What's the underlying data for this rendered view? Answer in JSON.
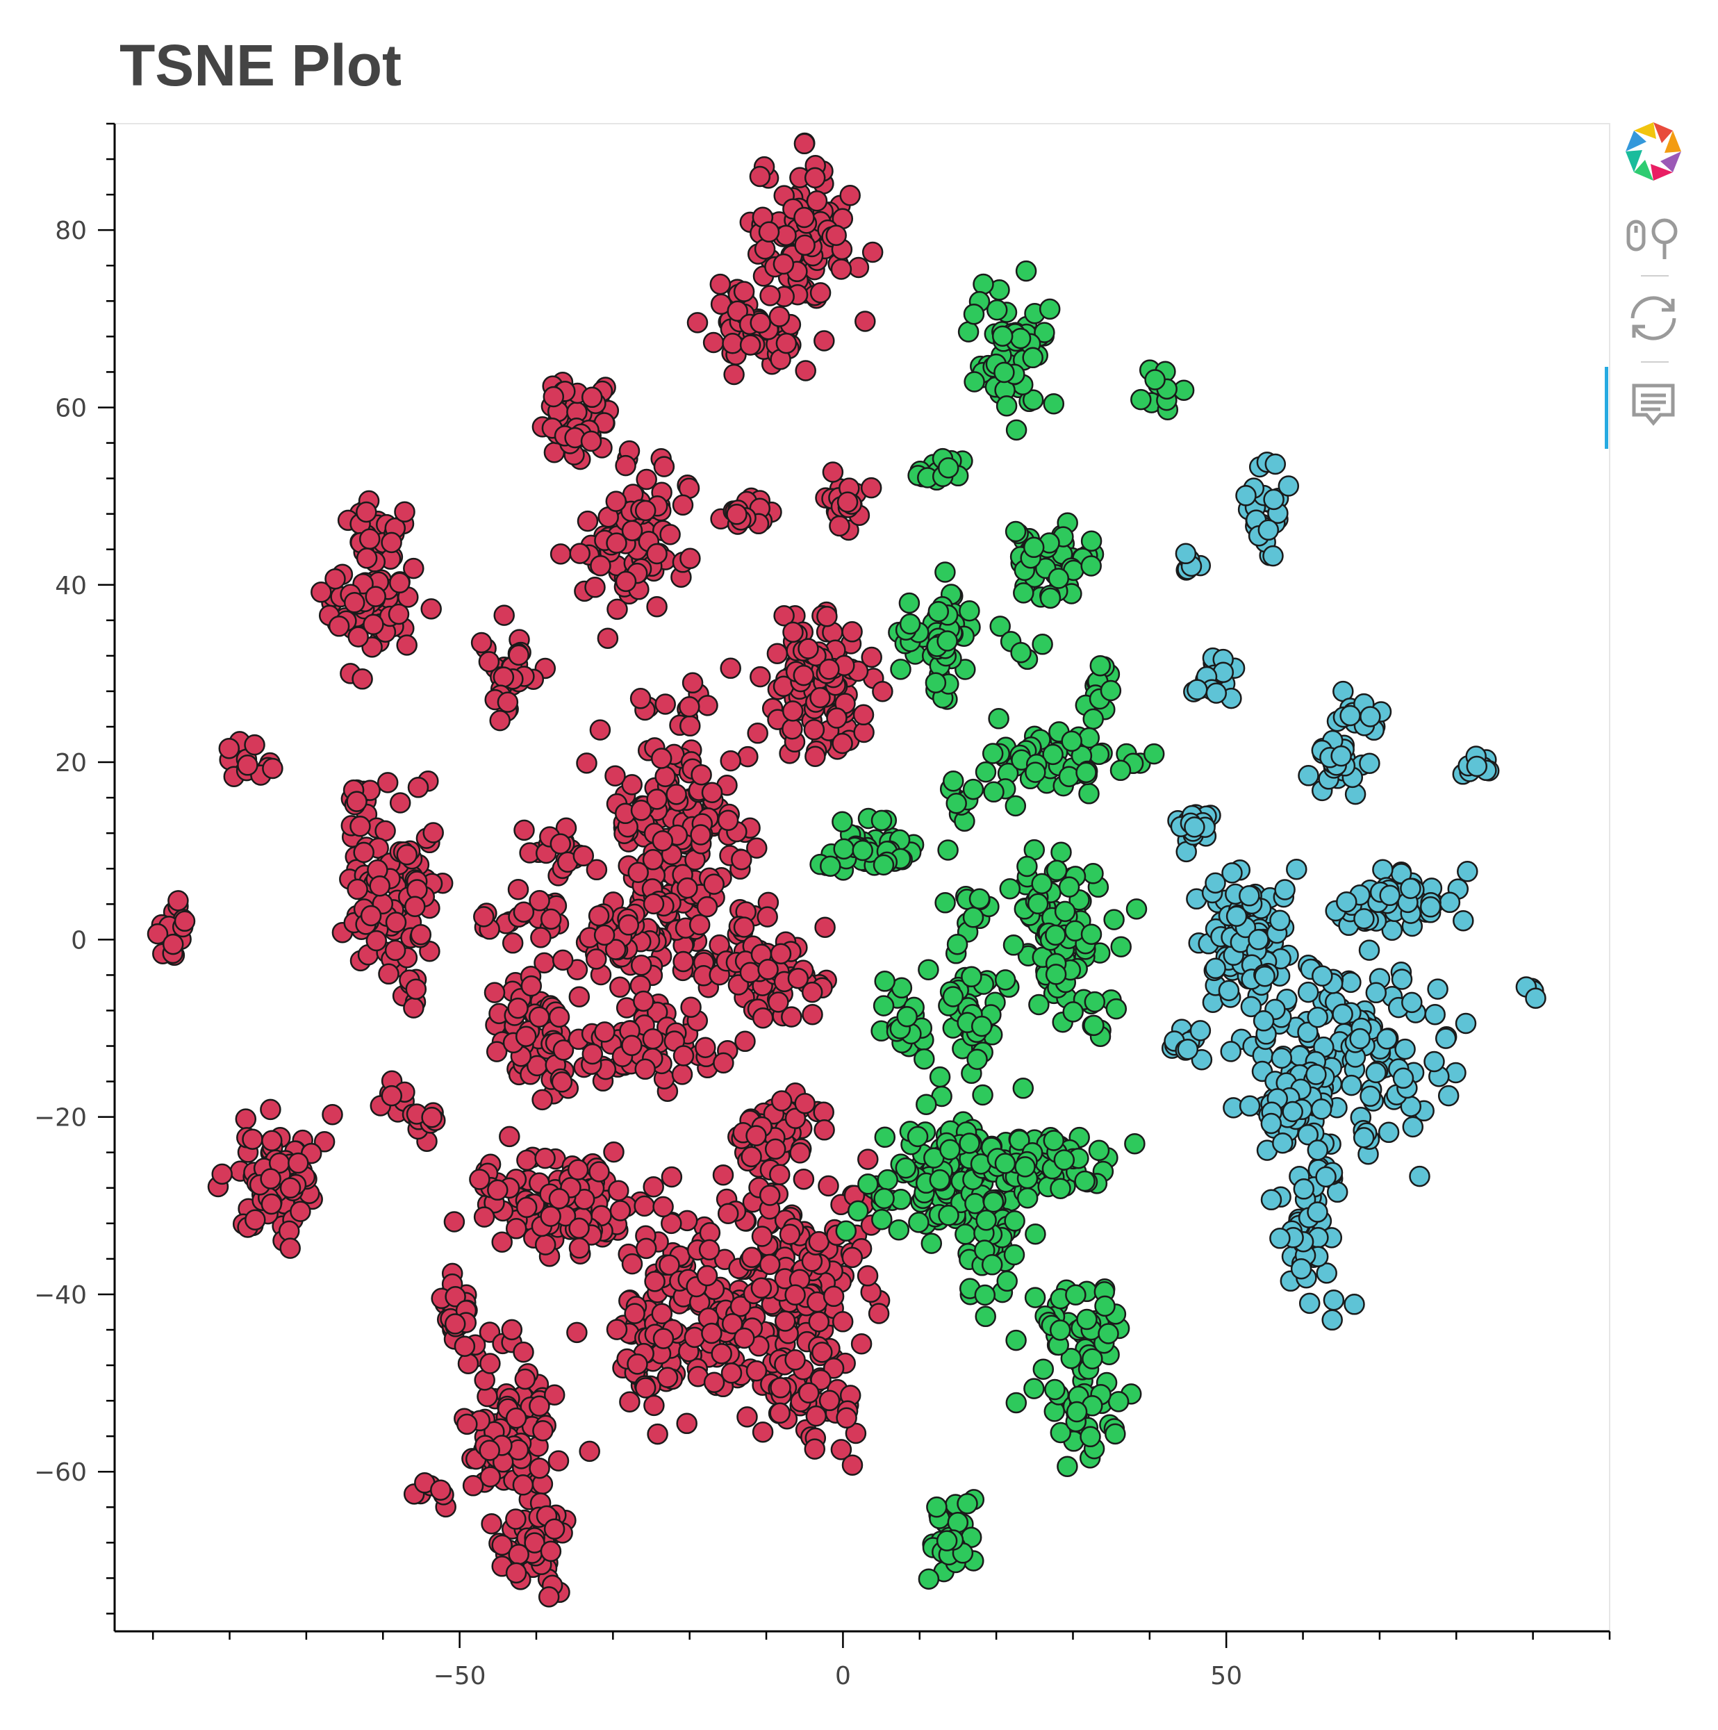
{
  "chart_data": {
    "type": "scatter",
    "title": "TSNE Plot",
    "xlabel": "",
    "ylabel": "",
    "xlim": [
      -95,
      100
    ],
    "ylim": [
      -78,
      92
    ],
    "x_ticks": [
      -50,
      0,
      50
    ],
    "y_ticks": [
      -60,
      -40,
      -20,
      0,
      20,
      40,
      60,
      80
    ],
    "grid": false,
    "legend": "none",
    "series": [
      {
        "color": "#d6395a",
        "clusters": [
          {
            "cx": -5,
            "cy": 79,
            "sx": 3.2,
            "sy": 4,
            "n": 90
          },
          {
            "cx": -11,
            "cy": 69,
            "sx": 3,
            "sy": 2.5,
            "n": 50
          },
          {
            "cx": -34,
            "cy": 59,
            "sx": 2.5,
            "sy": 2.5,
            "n": 50
          },
          {
            "cx": -61,
            "cy": 46,
            "sx": 2,
            "sy": 2,
            "n": 30
          },
          {
            "cx": -62,
            "cy": 38,
            "sx": 2.8,
            "sy": 2.8,
            "n": 60
          },
          {
            "cx": -27,
            "cy": 44,
            "sx": 3.2,
            "sy": 3.5,
            "n": 90
          },
          {
            "cx": -12,
            "cy": 48,
            "sx": 1.5,
            "sy": 1,
            "n": 15
          },
          {
            "cx": 0,
            "cy": 50,
            "sx": 1.5,
            "sy": 1.5,
            "n": 20
          },
          {
            "cx": -43,
            "cy": 31,
            "sx": 2.5,
            "sy": 2,
            "n": 25
          },
          {
            "cx": -45,
            "cy": 27,
            "sx": 1,
            "sy": 1,
            "n": 6
          },
          {
            "cx": -4,
            "cy": 29,
            "sx": 3.5,
            "sy": 4,
            "n": 100
          },
          {
            "cx": -77,
            "cy": 20,
            "sx": 1.5,
            "sy": 1.5,
            "n": 12
          },
          {
            "cx": -63,
            "cy": 16,
            "sx": 1,
            "sy": 1.5,
            "n": 10
          },
          {
            "cx": -59,
            "cy": 5,
            "sx": 3.2,
            "sy": 5,
            "n": 90
          },
          {
            "cx": -21,
            "cy": 11,
            "sx": 4.5,
            "sy": 8,
            "n": 200
          },
          {
            "cx": -37,
            "cy": 10,
            "sx": 2.5,
            "sy": 1.5,
            "n": 20
          },
          {
            "cx": -41,
            "cy": 2,
            "sx": 2.5,
            "sy": 1.5,
            "n": 20
          },
          {
            "cx": -29,
            "cy": 0,
            "sx": 2.5,
            "sy": 2.5,
            "n": 40
          },
          {
            "cx": -87,
            "cy": 1,
            "sx": 1.5,
            "sy": 1.5,
            "n": 15
          },
          {
            "cx": -9,
            "cy": -4,
            "sx": 3,
            "sy": 2.5,
            "n": 60
          },
          {
            "cx": -40,
            "cy": -10,
            "sx": 3,
            "sy": 4,
            "n": 60
          },
          {
            "cx": -24,
            "cy": -12,
            "sx": 5,
            "sy": 2.5,
            "n": 60
          },
          {
            "cx": -56,
            "cy": -6,
            "sx": 0.8,
            "sy": 1.5,
            "n": 6
          },
          {
            "cx": -58,
            "cy": -18,
            "sx": 1,
            "sy": 1,
            "n": 8
          },
          {
            "cx": -54,
            "cy": -20,
            "sx": 1,
            "sy": 1,
            "n": 8
          },
          {
            "cx": -74,
            "cy": -27,
            "sx": 2.5,
            "sy": 3.2,
            "n": 80
          },
          {
            "cx": -9,
            "cy": -22,
            "sx": 2.5,
            "sy": 3,
            "n": 50
          },
          {
            "cx": -36,
            "cy": -30,
            "sx": 4.5,
            "sy": 3,
            "n": 100
          },
          {
            "cx": -45,
            "cy": -27,
            "sx": 1.5,
            "sy": 1,
            "n": 10
          },
          {
            "cx": -20,
            "cy": -43,
            "sx": 5,
            "sy": 5,
            "n": 150
          },
          {
            "cx": -6,
            "cy": -38,
            "sx": 5,
            "sy": 6,
            "n": 150
          },
          {
            "cx": -4,
            "cy": -52,
            "sx": 3,
            "sy": 3,
            "n": 40
          },
          {
            "cx": -50,
            "cy": -42,
            "sx": 2,
            "sy": 2,
            "n": 25
          },
          {
            "cx": -44,
            "cy": -56,
            "sx": 3,
            "sy": 4.5,
            "n": 90
          },
          {
            "cx": -40,
            "cy": -68,
            "sx": 2.5,
            "sy": 2.5,
            "n": 50
          },
          {
            "cx": -54,
            "cy": -62,
            "sx": 1,
            "sy": 1,
            "n": 6
          }
        ]
      },
      {
        "color": "#2ec95c",
        "clusters": [
          {
            "cx": 22,
            "cy": 67,
            "sx": 2.5,
            "sy": 4,
            "n": 60
          },
          {
            "cx": 41,
            "cy": 62,
            "sx": 1.2,
            "sy": 1,
            "n": 12
          },
          {
            "cx": 13,
            "cy": 53,
            "sx": 1.5,
            "sy": 1,
            "n": 15
          },
          {
            "cx": 27,
            "cy": 43,
            "sx": 2.5,
            "sy": 2.5,
            "n": 50
          },
          {
            "cx": 13,
            "cy": 34,
            "sx": 2.5,
            "sy": 2.5,
            "n": 50
          },
          {
            "cx": 24,
            "cy": 33,
            "sx": 1,
            "sy": 1,
            "n": 5
          },
          {
            "cx": 33,
            "cy": 29,
            "sx": 1,
            "sy": 2,
            "n": 12
          },
          {
            "cx": 28,
            "cy": 20,
            "sx": 5,
            "sy": 2,
            "n": 50
          },
          {
            "cx": 15,
            "cy": 15,
            "sx": 1,
            "sy": 2,
            "n": 10
          },
          {
            "cx": 4,
            "cy": 10,
            "sx": 3,
            "sy": 2,
            "n": 40
          },
          {
            "cx": 28,
            "cy": 2,
            "sx": 3,
            "sy": 3.5,
            "n": 80
          },
          {
            "cx": 16,
            "cy": 3,
            "sx": 1.5,
            "sy": 1.5,
            "n": 10
          },
          {
            "cx": 17,
            "cy": -8,
            "sx": 2,
            "sy": 4,
            "n": 40
          },
          {
            "cx": 8,
            "cy": -10,
            "sx": 1.5,
            "sy": 2,
            "n": 20
          },
          {
            "cx": 32,
            "cy": -8,
            "sx": 2,
            "sy": 1.5,
            "n": 12
          },
          {
            "cx": 15,
            "cy": -27,
            "sx": 5,
            "sy": 4,
            "n": 150
          },
          {
            "cx": 27,
            "cy": -25,
            "sx": 4,
            "sy": 2,
            "n": 60
          },
          {
            "cx": 19,
            "cy": -36,
            "sx": 1.5,
            "sy": 3,
            "n": 20
          },
          {
            "cx": 31,
            "cy": -48,
            "sx": 2.5,
            "sy": 5,
            "n": 80
          },
          {
            "cx": 14,
            "cy": -68,
            "sx": 1.8,
            "sy": 2,
            "n": 30
          }
        ]
      },
      {
        "color": "#5ec3d6",
        "clusters": [
          {
            "cx": 55,
            "cy": 48,
            "sx": 1.5,
            "sy": 3,
            "n": 30
          },
          {
            "cx": 45,
            "cy": 42,
            "sx": 0.8,
            "sy": 0.8,
            "n": 6
          },
          {
            "cx": 48,
            "cy": 29,
            "sx": 1.5,
            "sy": 1.5,
            "n": 20
          },
          {
            "cx": 67,
            "cy": 25,
            "sx": 1.5,
            "sy": 1.2,
            "n": 15
          },
          {
            "cx": 64,
            "cy": 20,
            "sx": 2,
            "sy": 1.5,
            "n": 25
          },
          {
            "cx": 82,
            "cy": 20,
            "sx": 1,
            "sy": 1,
            "n": 10
          },
          {
            "cx": 46,
            "cy": 13,
            "sx": 1.5,
            "sy": 1.2,
            "n": 20
          },
          {
            "cx": 53,
            "cy": 0,
            "sx": 3,
            "sy": 4,
            "n": 80
          },
          {
            "cx": 73,
            "cy": 4,
            "sx": 5,
            "sy": 2,
            "n": 50
          },
          {
            "cx": 65,
            "cy": -12,
            "sx": 6,
            "sy": 5,
            "n": 150
          },
          {
            "cx": 45,
            "cy": -12,
            "sx": 1.2,
            "sy": 1.2,
            "n": 10
          },
          {
            "cx": 58,
            "cy": -20,
            "sx": 3,
            "sy": 2,
            "n": 30
          },
          {
            "cx": 61,
            "cy": -33,
            "sx": 2.5,
            "sy": 4,
            "n": 50
          },
          {
            "cx": 90,
            "cy": -6,
            "sx": 0.5,
            "sy": 0.5,
            "n": 4
          }
        ]
      }
    ]
  },
  "toolbar": {
    "tools": [
      {
        "icon": "bokeh-logo-icon"
      },
      {
        "icon": "wheel-zoom-icon"
      },
      {
        "icon": "reset-icon"
      },
      {
        "icon": "hover-icon"
      }
    ]
  }
}
